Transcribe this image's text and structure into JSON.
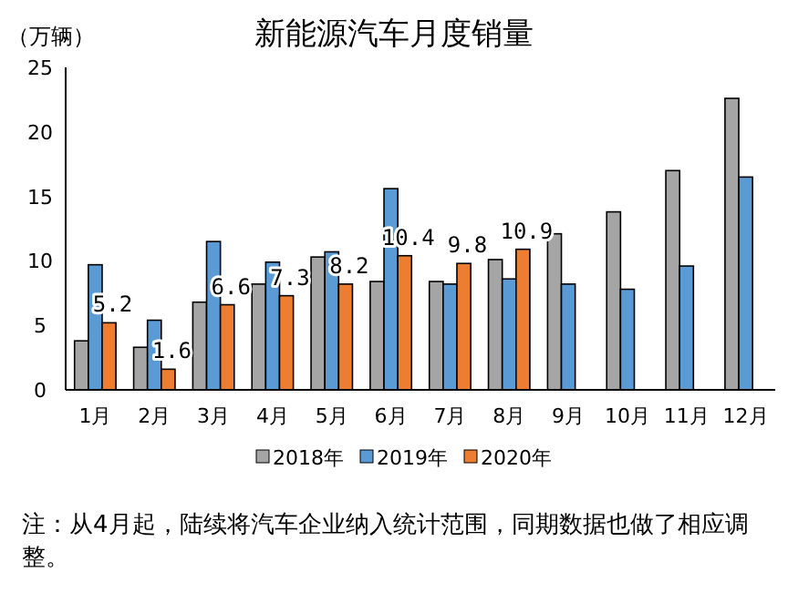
{
  "chart_data": {
    "type": "bar",
    "title": "新能源汽车月度销量",
    "ylabel": "（万辆）",
    "categories": [
      "1月",
      "2月",
      "3月",
      "4月",
      "5月",
      "6月",
      "7月",
      "8月",
      "9月",
      "10月",
      "11月",
      "12月"
    ],
    "series": [
      {
        "name": "2018年",
        "color": "#a5a5a5",
        "values": [
          3.8,
          3.3,
          6.8,
          8.2,
          10.3,
          8.4,
          8.4,
          10.1,
          12.1,
          13.8,
          17.0,
          22.6
        ]
      },
      {
        "name": "2019年",
        "color": "#5b9bd5",
        "values": [
          9.7,
          5.4,
          11.5,
          9.9,
          10.7,
          15.6,
          8.2,
          8.6,
          8.2,
          7.8,
          9.6,
          16.5
        ]
      },
      {
        "name": "2020年",
        "color": "#ed7d31",
        "values": [
          5.2,
          1.6,
          6.6,
          7.3,
          8.2,
          10.4,
          9.8,
          10.9,
          null,
          null,
          null,
          null
        ],
        "value_labels": [
          "5.2",
          "1.6",
          "6.6",
          "7.3",
          "8.2",
          "10.4",
          "9.8",
          "10.9",
          null,
          null,
          null,
          null
        ]
      }
    ],
    "ylim": [
      0,
      25
    ],
    "yticks": [
      0,
      5,
      10,
      15,
      20,
      25
    ],
    "legend": "bottom",
    "annotations": [
      "注：从4月起，陆续将汽车企业纳入统计范围，同期数据也做了相应调整。"
    ]
  }
}
